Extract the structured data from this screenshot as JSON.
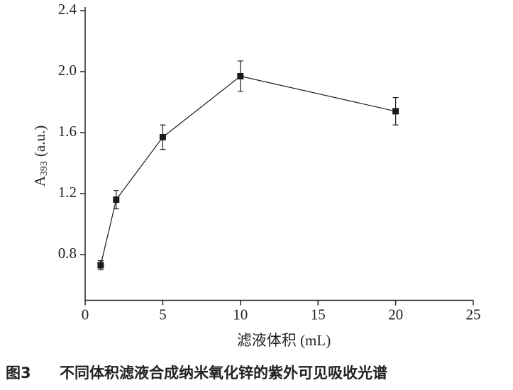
{
  "chart_data": {
    "type": "line",
    "x_label": "滤液体积 (mL)",
    "y_label": "A",
    "y_label_subscript": "393",
    "y_label_suffix": "(a.u.)",
    "caption_number": "图3",
    "caption": "不同体积滤液合成纳米氧化锌的紫外可见吸收光谱",
    "x": [
      1,
      2,
      5,
      10,
      20
    ],
    "series": [
      {
        "color": "#1a1a1a",
        "values": [
          0.73,
          1.16,
          1.57,
          1.97,
          1.74
        ],
        "errors": [
          0.03,
          0.06,
          0.08,
          0.1,
          0.09
        ]
      }
    ],
    "xlim": [
      0,
      25
    ],
    "xticks": [
      0,
      5,
      10,
      15,
      20,
      25
    ],
    "ylim": [
      0.5,
      2.4
    ],
    "yticks": [
      0.8,
      1.2,
      1.6,
      {
        "value": 2,
        "label": "2.0"
      },
      2.4
    ],
    "grid": false
  }
}
